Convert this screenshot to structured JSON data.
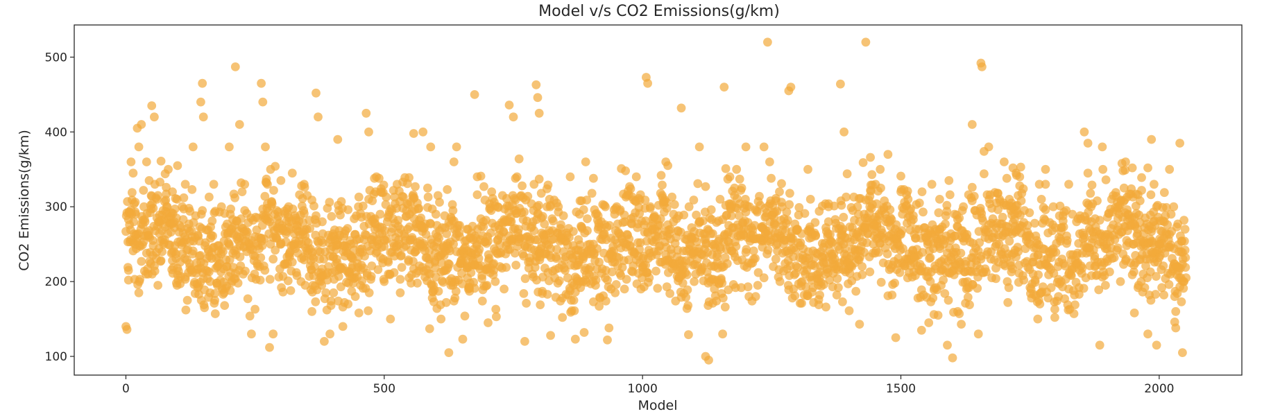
{
  "chart_data": {
    "type": "scatter",
    "title": "Model v/s CO2 Emissions(g/km)",
    "xlabel": "Model",
    "ylabel": "CO2 Emissions(g/km)",
    "xlim": [
      -100,
      2160
    ],
    "ylim": [
      75,
      543
    ],
    "xticks": [
      0,
      500,
      1000,
      1500,
      2000
    ],
    "yticks": [
      100,
      200,
      300,
      400,
      500
    ],
    "grid": false,
    "legend": "none",
    "point_color": "#F2A93B",
    "point_alpha": 0.7,
    "n_models": 2053,
    "points": [
      [
        0,
        140
      ],
      [
        2,
        136
      ],
      [
        5,
        215
      ],
      [
        10,
        360
      ],
      [
        14,
        345
      ],
      [
        18,
        250
      ],
      [
        22,
        405
      ],
      [
        25,
        380
      ],
      [
        30,
        410
      ],
      [
        35,
        300
      ],
      [
        40,
        360
      ],
      [
        45,
        335
      ],
      [
        50,
        435
      ],
      [
        55,
        420
      ],
      [
        62,
        195
      ],
      [
        70,
        240
      ],
      [
        80,
        300
      ],
      [
        90,
        320
      ],
      [
        100,
        355
      ],
      [
        115,
        330
      ],
      [
        130,
        380
      ],
      [
        145,
        440
      ],
      [
        148,
        465
      ],
      [
        150,
        420
      ],
      [
        160,
        240
      ],
      [
        170,
        330
      ],
      [
        185,
        300
      ],
      [
        200,
        380
      ],
      [
        212,
        487
      ],
      [
        220,
        410
      ],
      [
        230,
        330
      ],
      [
        243,
        130
      ],
      [
        250,
        260
      ],
      [
        262,
        465
      ],
      [
        265,
        440
      ],
      [
        270,
        380
      ],
      [
        278,
        112
      ],
      [
        285,
        130
      ],
      [
        300,
        250
      ],
      [
        315,
        300
      ],
      [
        330,
        270
      ],
      [
        345,
        330
      ],
      [
        360,
        160
      ],
      [
        368,
        452
      ],
      [
        372,
        420
      ],
      [
        380,
        280
      ],
      [
        395,
        130
      ],
      [
        410,
        390
      ],
      [
        420,
        140
      ],
      [
        435,
        250
      ],
      [
        450,
        300
      ],
      [
        465,
        425
      ],
      [
        470,
        400
      ],
      [
        485,
        340
      ],
      [
        500,
        200
      ],
      [
        512,
        150
      ],
      [
        525,
        330
      ],
      [
        540,
        260
      ],
      [
        557,
        398
      ],
      [
        560,
        240
      ],
      [
        575,
        400
      ],
      [
        590,
        380
      ],
      [
        600,
        290
      ],
      [
        610,
        150
      ],
      [
        625,
        105
      ],
      [
        635,
        360
      ],
      [
        640,
        380
      ],
      [
        652,
        123
      ],
      [
        660,
        270
      ],
      [
        675,
        450
      ],
      [
        680,
        340
      ],
      [
        700,
        260
      ],
      [
        720,
        300
      ],
      [
        742,
        436
      ],
      [
        750,
        420
      ],
      [
        760,
        260
      ],
      [
        772,
        120
      ],
      [
        790,
        330
      ],
      [
        794,
        463
      ],
      [
        797,
        446
      ],
      [
        800,
        425
      ],
      [
        815,
        300
      ],
      [
        822,
        128
      ],
      [
        840,
        260
      ],
      [
        860,
        340
      ],
      [
        870,
        123
      ],
      [
        890,
        360
      ],
      [
        905,
        250
      ],
      [
        920,
        280
      ],
      [
        932,
        122
      ],
      [
        950,
        300
      ],
      [
        965,
        190
      ],
      [
        980,
        240
      ],
      [
        1000,
        220
      ],
      [
        1007,
        473
      ],
      [
        1010,
        465
      ],
      [
        1015,
        300
      ],
      [
        1030,
        260
      ],
      [
        1045,
        360
      ],
      [
        1060,
        280
      ],
      [
        1075,
        432
      ],
      [
        1090,
        300
      ],
      [
        1110,
        380
      ],
      [
        1122,
        100
      ],
      [
        1128,
        95
      ],
      [
        1140,
        250
      ],
      [
        1155,
        130
      ],
      [
        1158,
        460
      ],
      [
        1170,
        300
      ],
      [
        1190,
        260
      ],
      [
        1200,
        380
      ],
      [
        1215,
        230
      ],
      [
        1235,
        380
      ],
      [
        1242,
        520
      ],
      [
        1258,
        230
      ],
      [
        1270,
        300
      ],
      [
        1283,
        455
      ],
      [
        1287,
        460
      ],
      [
        1300,
        270
      ],
      [
        1320,
        350
      ],
      [
        1340,
        200
      ],
      [
        1360,
        300
      ],
      [
        1383,
        464
      ],
      [
        1390,
        400
      ],
      [
        1400,
        230
      ],
      [
        1420,
        280
      ],
      [
        1432,
        520
      ],
      [
        1440,
        300
      ],
      [
        1460,
        350
      ],
      [
        1475,
        370
      ],
      [
        1490,
        125
      ],
      [
        1500,
        320
      ],
      [
        1520,
        280
      ],
      [
        1540,
        135
      ],
      [
        1560,
        330
      ],
      [
        1575,
        310
      ],
      [
        1590,
        115
      ],
      [
        1600,
        98
      ],
      [
        1610,
        160
      ],
      [
        1625,
        260
      ],
      [
        1638,
        410
      ],
      [
        1650,
        130
      ],
      [
        1655,
        492
      ],
      [
        1657,
        487
      ],
      [
        1670,
        380
      ],
      [
        1685,
        250
      ],
      [
        1700,
        360
      ],
      [
        1715,
        300
      ],
      [
        1730,
        340
      ],
      [
        1750,
        250
      ],
      [
        1765,
        150
      ],
      [
        1780,
        350
      ],
      [
        1795,
        300
      ],
      [
        1810,
        200
      ],
      [
        1825,
        330
      ],
      [
        1840,
        280
      ],
      [
        1855,
        400
      ],
      [
        1862,
        385
      ],
      [
        1875,
        220
      ],
      [
        1885,
        115
      ],
      [
        1890,
        380
      ],
      [
        1905,
        260
      ],
      [
        1920,
        300
      ],
      [
        1935,
        360
      ],
      [
        1950,
        250
      ],
      [
        1965,
        200
      ],
      [
        1978,
        130
      ],
      [
        1985,
        390
      ],
      [
        1990,
        330
      ],
      [
        1995,
        115
      ],
      [
        2000,
        250
      ],
      [
        2010,
        280
      ],
      [
        2020,
        350
      ],
      [
        2030,
        180
      ],
      [
        2040,
        385
      ],
      [
        2045,
        105
      ],
      [
        2050,
        270
      ]
    ]
  }
}
